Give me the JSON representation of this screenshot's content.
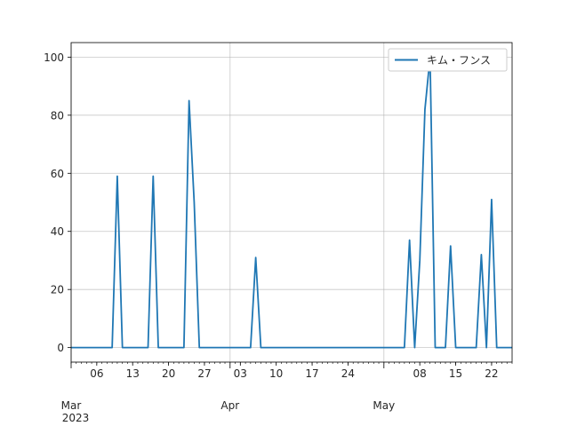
{
  "chart_data": {
    "type": "line",
    "title": "",
    "xlabel": "",
    "ylabel": "",
    "legend_position": "top-right",
    "grid": true,
    "x_start": "2023-03-01",
    "x_end": "2023-05-26",
    "ylim": [
      -5,
      105
    ],
    "y_ticks": [
      0,
      20,
      40,
      60,
      80,
      100
    ],
    "x_minor_ticks": [
      "2023-03-06",
      "2023-03-13",
      "2023-03-20",
      "2023-03-27",
      "2023-04-03",
      "2023-04-10",
      "2023-04-17",
      "2023-04-24",
      "2023-05-08",
      "2023-05-15",
      "2023-05-22"
    ],
    "x_minor_labels": [
      "06",
      "13",
      "20",
      "27",
      "03",
      "10",
      "17",
      "24",
      "08",
      "15",
      "22"
    ],
    "x_major_ticks": [
      {
        "date": "2023-03-01",
        "label": "Mar",
        "year": "2023"
      },
      {
        "date": "2023-04-01",
        "label": "Apr",
        "year": ""
      },
      {
        "date": "2023-05-01",
        "label": "May",
        "year": ""
      }
    ],
    "series": [
      {
        "name": "キム・フンス",
        "color": "#1f77b4",
        "points": [
          [
            "2023-03-01",
            0
          ],
          [
            "2023-03-09",
            0
          ],
          [
            "2023-03-10",
            59
          ],
          [
            "2023-03-11",
            0
          ],
          [
            "2023-03-16",
            0
          ],
          [
            "2023-03-17",
            59
          ],
          [
            "2023-03-18",
            0
          ],
          [
            "2023-03-23",
            0
          ],
          [
            "2023-03-24",
            85
          ],
          [
            "2023-03-25",
            50
          ],
          [
            "2023-03-26",
            0
          ],
          [
            "2023-04-05",
            0
          ],
          [
            "2023-04-06",
            31
          ],
          [
            "2023-04-07",
            0
          ],
          [
            "2023-05-05",
            0
          ],
          [
            "2023-05-06",
            37
          ],
          [
            "2023-05-07",
            0
          ],
          [
            "2023-05-08",
            30
          ],
          [
            "2023-05-09",
            82
          ],
          [
            "2023-05-10",
            100
          ],
          [
            "2023-05-11",
            0
          ],
          [
            "2023-05-13",
            0
          ],
          [
            "2023-05-14",
            35
          ],
          [
            "2023-05-15",
            0
          ],
          [
            "2023-05-19",
            0
          ],
          [
            "2023-05-20",
            32
          ],
          [
            "2023-05-21",
            0
          ],
          [
            "2023-05-22",
            51
          ],
          [
            "2023-05-23",
            0
          ],
          [
            "2023-05-26",
            0
          ]
        ]
      }
    ]
  }
}
